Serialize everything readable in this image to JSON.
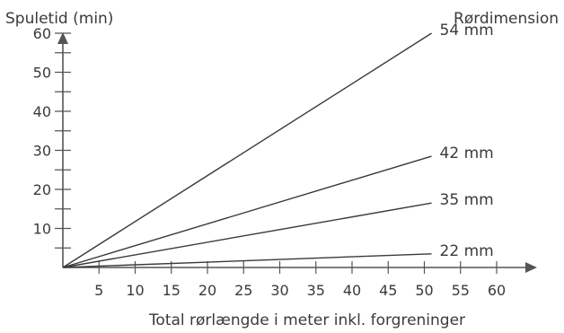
{
  "chart_data": {
    "type": "line",
    "ylabel": "Spuletid (min)",
    "xlabel": "Total rørlængde i meter inkl. forgreninger",
    "legend_title": "Rørdimension",
    "xlim": [
      0,
      63
    ],
    "ylim": [
      0,
      66
    ],
    "x_ticks": [
      5,
      10,
      15,
      20,
      25,
      30,
      35,
      40,
      45,
      50,
      55,
      60
    ],
    "y_ticks": [
      10,
      20,
      30,
      40,
      50,
      60
    ],
    "y_minor_ticks": [
      5,
      15,
      25,
      35,
      45,
      55
    ],
    "grid": false,
    "series": [
      {
        "name": "54 mm",
        "x": [
          0,
          51
        ],
        "y": [
          0,
          60
        ]
      },
      {
        "name": "42 mm",
        "x": [
          0,
          51
        ],
        "y": [
          0,
          28.5
        ]
      },
      {
        "name": "35 mm",
        "x": [
          0,
          51
        ],
        "y": [
          0,
          16.5
        ]
      },
      {
        "name": "22 mm",
        "x": [
          0,
          51
        ],
        "y": [
          0,
          3.5
        ]
      }
    ],
    "colors": {
      "line": "#3a3a3a",
      "axis": "#555555"
    }
  }
}
